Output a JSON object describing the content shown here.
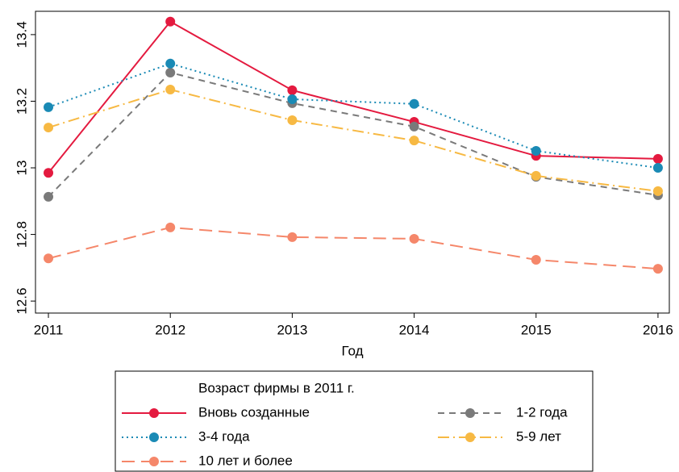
{
  "chart_data": {
    "type": "line",
    "x_label": "Год",
    "x": [
      2011,
      2012,
      2013,
      2014,
      2015,
      2016
    ],
    "xlim": [
      2010.894,
      2016.093
    ],
    "xticks": [
      2011,
      2012,
      2013,
      2014,
      2015,
      2016
    ],
    "ylim": [
      12.564,
      13.47
    ],
    "yticks": [
      12.6,
      12.8,
      13,
      13.2,
      13.4
    ],
    "legend_title": "Возраст фирмы в 2011 г.",
    "series": [
      {
        "name": "Вновь созданные",
        "color": "#e41a3f",
        "style": "solid",
        "values": [
          12.985,
          13.439,
          13.233,
          13.138,
          13.036,
          13.027
        ]
      },
      {
        "name": "1-2 года",
        "color": "#7a7a7a",
        "style": "dashed",
        "values": [
          12.913,
          13.286,
          13.194,
          13.124,
          12.973,
          12.918
        ]
      },
      {
        "name": "3-4 года",
        "color": "#1a8ab5",
        "style": "dotted",
        "values": [
          13.182,
          13.313,
          13.206,
          13.192,
          13.051,
          13.0
        ]
      },
      {
        "name": "5-9 лет",
        "color": "#f7b943",
        "style": "dashdot",
        "values": [
          13.121,
          13.235,
          13.143,
          13.082,
          12.976,
          12.93
        ]
      },
      {
        "name": "10 лет и более",
        "color": "#f5876a",
        "style": "longdash",
        "values": [
          12.728,
          12.821,
          12.792,
          12.787,
          12.724,
          12.697
        ]
      }
    ]
  }
}
